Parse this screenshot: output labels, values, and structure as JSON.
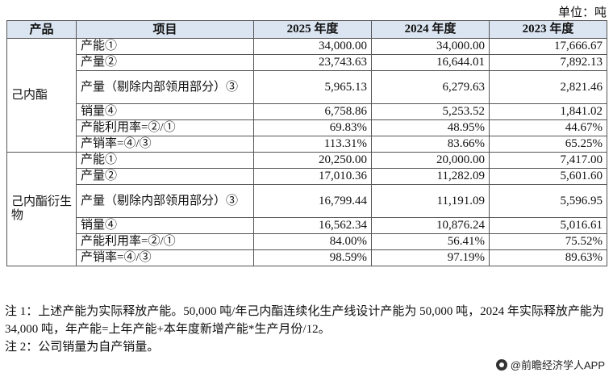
{
  "unit": "单位：吨",
  "header": {
    "product": "产品",
    "item": "项目",
    "y2025": "2025 年度",
    "y2024": "2024 年度",
    "y2023": "2023 年度"
  },
  "groups": [
    {
      "product": "己内酯",
      "rows": [
        {
          "item": "产能①",
          "v2025": "34,000.00",
          "v2024": "34,000.00",
          "v2023": "17,666.67"
        },
        {
          "item": "产量②",
          "v2025": "23,743.63",
          "v2024": "16,644.01",
          "v2023": "7,892.13"
        },
        {
          "item": "产量（剔除内部领用部分）③",
          "v2025": "5,965.13",
          "v2024": "6,279.63",
          "v2023": "2,821.46"
        },
        {
          "item": "销量④",
          "v2025": "6,758.86",
          "v2024": "5,253.52",
          "v2023": "1,841.02"
        },
        {
          "item": "产能利用率=②/①",
          "v2025": "69.83%",
          "v2024": "48.95%",
          "v2023": "44.67%"
        },
        {
          "item": "产销率=④/③",
          "v2025": "113.31%",
          "v2024": "83.66%",
          "v2023": "65.25%"
        }
      ]
    },
    {
      "product": "己内酯衍生物",
      "rows": [
        {
          "item": "产能①",
          "v2025": "20,250.00",
          "v2024": "20,000.00",
          "v2023": "7,417.00"
        },
        {
          "item": "产量②",
          "v2025": "17,010.36",
          "v2024": "11,282.09",
          "v2023": "5,601.60"
        },
        {
          "item": "产量（剔除内部领用部分）③",
          "v2025": "16,799.44",
          "v2024": "11,191.09",
          "v2023": "5,596.95"
        },
        {
          "item": "销量④",
          "v2025": "16,562.34",
          "v2024": "10,876.24",
          "v2023": "5,016.61"
        },
        {
          "item": "产能利用率=②/①",
          "v2025": "84.00%",
          "v2024": "56.41%",
          "v2023": "75.52%"
        },
        {
          "item": "产销率=④/③",
          "v2025": "98.59%",
          "v2024": "97.19%",
          "v2023": "89.63%"
        }
      ]
    }
  ],
  "notes": {
    "note1": "注 1：上述产能为实际释放产能。50,000 吨/年己内酯连续化生产线设计产能为 50,000 吨，2024 年实际释放产能为 34,000 吨，年产能=上年产能+本年度新增产能*生产月份/12。",
    "note2": "注 2：公司销量为自产销量。"
  },
  "watermark": "@前瞻经济学人APP"
}
